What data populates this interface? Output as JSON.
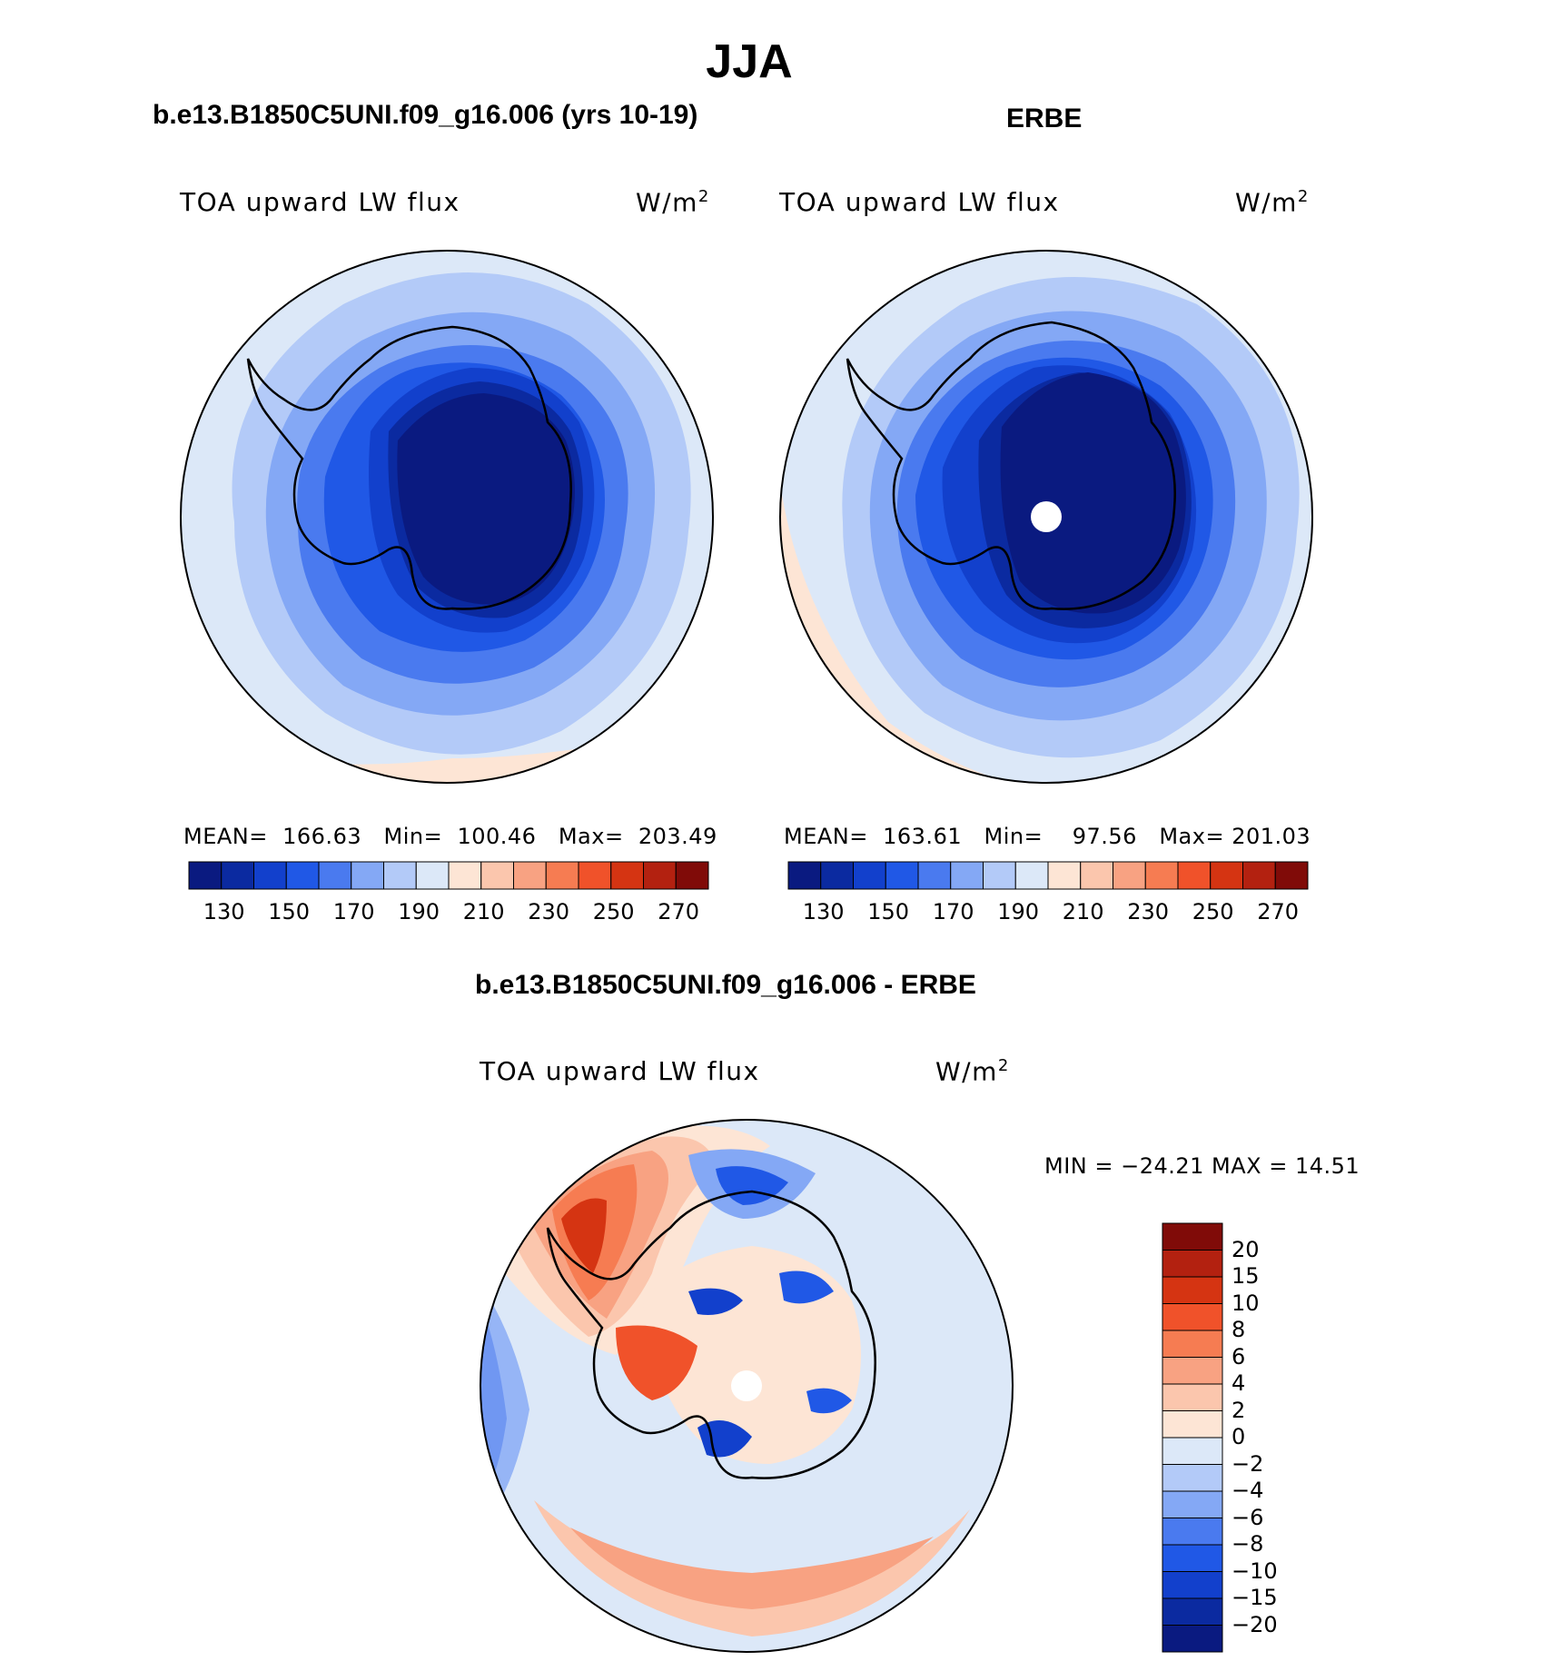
{
  "title": "JJA",
  "panels": [
    {
      "title": "b.e13.B1850C5UNI.f09_g16.006 (yrs 10-19)",
      "variable": "TOA upward LW flux",
      "units": "W/m",
      "units_sup": "2",
      "stats": {
        "mean_label": "MEAN=",
        "mean": "166.63",
        "min_label": "Min=",
        "min": "100.46",
        "max_label": "Max=",
        "max": "203.49"
      }
    },
    {
      "title": "ERBE",
      "variable": "TOA upward LW flux",
      "units": "W/m",
      "units_sup": "2",
      "stats": {
        "mean_label": "MEAN=",
        "mean": "163.61",
        "min_label": "Min=",
        "min": "97.56",
        "max_label": "Max=",
        "max": "201.03"
      }
    },
    {
      "title": "b.e13.B1850C5UNI.f09_g16.006 - ERBE",
      "variable": "TOA upward LW flux",
      "units": "W/m",
      "units_sup": "2",
      "minmax_text": "MIN = −24.21 MAX =   14.51"
    }
  ],
  "colorbar_abs": {
    "colors": [
      "#0a1a80",
      "#0b2aa0",
      "#1240cc",
      "#2058e6",
      "#4a7aef",
      "#84a8f5",
      "#b3caf8",
      "#dce8f8",
      "#fde5d5",
      "#fbc6ad",
      "#f8a282",
      "#f67c52",
      "#f0522a",
      "#d53412",
      "#b32110",
      "#800b08"
    ],
    "tick_labels": [
      "130",
      "150",
      "170",
      "190",
      "210",
      "230",
      "250",
      "270"
    ]
  },
  "colorbar_diff": {
    "colors": [
      "#0a1a80",
      "#0b2aa0",
      "#1240cc",
      "#2058e6",
      "#4a7aef",
      "#84a8f5",
      "#b3caf8",
      "#dce8f8",
      "#fde5d5",
      "#fbc6ad",
      "#f8a282",
      "#f67c52",
      "#f0522a",
      "#d53412",
      "#b32110",
      "#800b08"
    ],
    "tick_labels": [
      "20",
      "15",
      "10",
      "8",
      "6",
      "4",
      "2",
      "0",
      "−2",
      "−4",
      "−6",
      "−8",
      "−10",
      "−15",
      "−20"
    ]
  },
  "map_colors": {
    "deep": "#0a1a80",
    "deep2": "#0b2aa0",
    "mid": "#1240cc",
    "mid2": "#2058e6",
    "blue5": "#4a7aef",
    "blue6": "#84a8f5",
    "blue7": "#b3caf8",
    "blue8": "#dce8f8",
    "peach": "#fde5d5",
    "orange1": "#fbc6ad",
    "orange2": "#f8a282",
    "orange3": "#f67c52",
    "red1": "#f0522a",
    "red2": "#d53412"
  }
}
